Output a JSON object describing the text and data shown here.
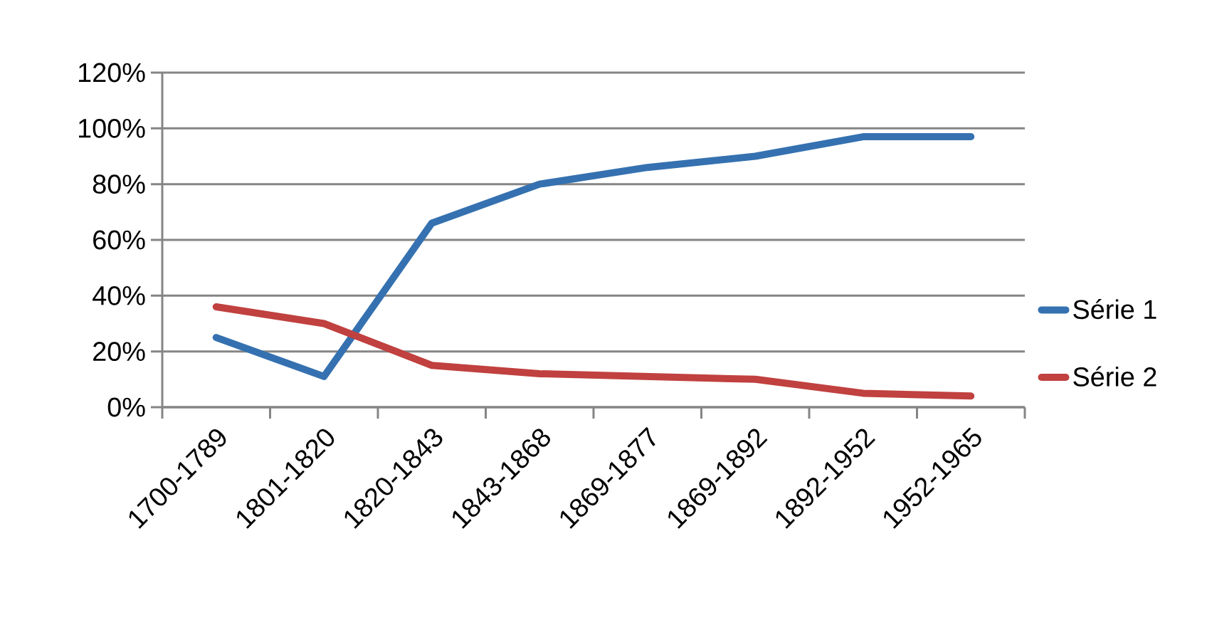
{
  "chart_data": {
    "type": "line",
    "categories": [
      "1700-1789",
      "1801-1820",
      "1820-1843",
      "1843-1868",
      "1869-1877",
      "1869-1892",
      "1892-1952",
      "1952-1965"
    ],
    "series": [
      {
        "name": "Série 1",
        "color": "#3571b0",
        "values": [
          25,
          11,
          66,
          80,
          86,
          90,
          97,
          97
        ]
      },
      {
        "name": "Série 2",
        "color": "#c0413f",
        "values": [
          36,
          30,
          15,
          12,
          11,
          10,
          5,
          4
        ]
      }
    ],
    "ylim": [
      0,
      120
    ],
    "yticks": [
      {
        "value": 0,
        "label": "0%"
      },
      {
        "value": 20,
        "label": "20%"
      },
      {
        "value": 40,
        "label": "40%"
      },
      {
        "value": 60,
        "label": "60%"
      },
      {
        "value": 80,
        "label": "80%"
      },
      {
        "value": 100,
        "label": "100%"
      },
      {
        "value": 120,
        "label": "120%"
      }
    ],
    "grid": "y",
    "legend": "right",
    "marker": "none",
    "line_style": "solid"
  }
}
